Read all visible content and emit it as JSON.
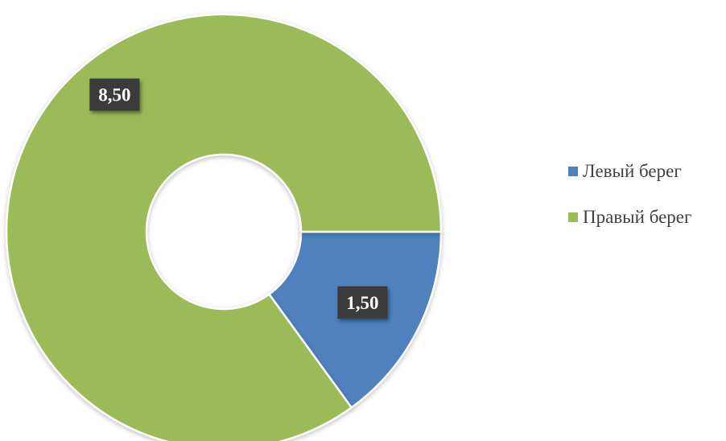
{
  "chart_data": {
    "type": "pie",
    "variant": "doughnut",
    "title": "",
    "series": [
      {
        "categories": [
          "Левый берег",
          "Правый берег"
        ],
        "values": [
          1.5,
          8.5
        ],
        "labels": [
          "1,50",
          "8,50"
        ],
        "colors": [
          "#4f81bd",
          "#9bbb59"
        ]
      }
    ],
    "legend": {
      "position": "right",
      "entries": [
        "Левый берег",
        "Правый берег"
      ]
    }
  }
}
